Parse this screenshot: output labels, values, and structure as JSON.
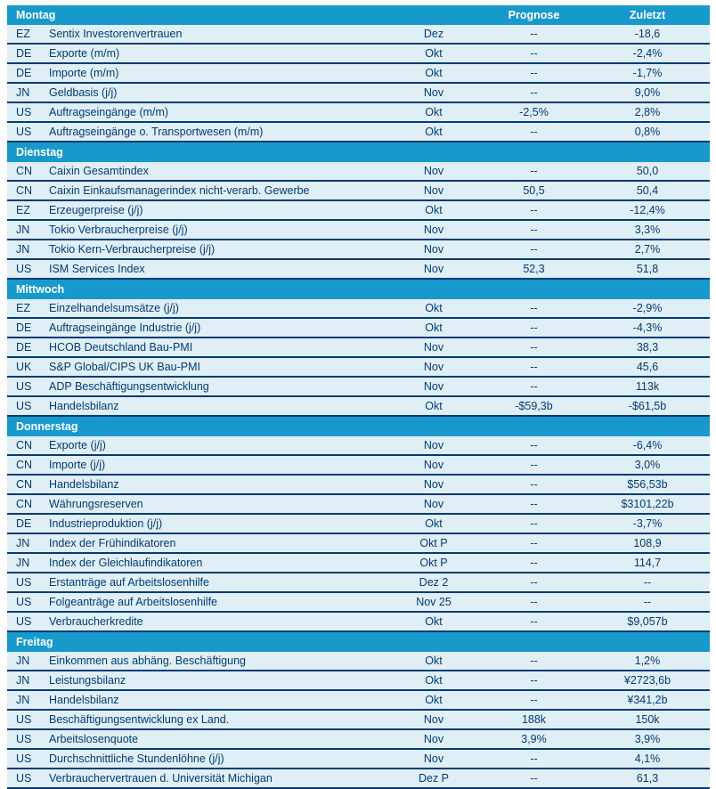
{
  "table": {
    "columns": {
      "prognose": "Prognose",
      "zuletzt": "Zuletzt"
    },
    "colors": {
      "header_bar": "#1899cb",
      "row_background": "#e0eef5",
      "navy": "#003c73"
    },
    "sections": [
      {
        "label": "Montag",
        "show_column_headers": true,
        "rows": [
          {
            "code": "EZ",
            "name": "Sentix Investorenvertrauen",
            "period": "Dez",
            "prognose": "--",
            "zuletzt": "-18,6"
          },
          {
            "code": "DE",
            "name": "Exporte (m/m)",
            "period": "Okt",
            "prognose": "--",
            "zuletzt": "-2,4%"
          },
          {
            "code": "DE",
            "name": "Importe (m/m)",
            "period": "Okt",
            "prognose": "--",
            "zuletzt": "-1,7%"
          },
          {
            "code": "JN",
            "name": "Geldbasis (j/j)",
            "period": "Nov",
            "prognose": "--",
            "zuletzt": "9,0%"
          },
          {
            "code": "US",
            "name": "Auftragseingänge (m/m)",
            "period": "Okt",
            "prognose": "-2,5%",
            "zuletzt": "2,8%"
          },
          {
            "code": "US",
            "name": "Auftragseingänge o. Transportwesen (m/m)",
            "period": "Okt",
            "prognose": "--",
            "zuletzt": "0,8%"
          }
        ]
      },
      {
        "label": "Dienstag",
        "show_column_headers": false,
        "rows": [
          {
            "code": "CN",
            "name": "Caixin Gesamtindex",
            "period": "Nov",
            "prognose": "--",
            "zuletzt": "50,0"
          },
          {
            "code": "CN",
            "name": "Caixin Einkaufsmanagerindex nicht-verarb. Gewerbe",
            "period": "Nov",
            "prognose": "50,5",
            "zuletzt": "50,4"
          },
          {
            "code": "EZ",
            "name": "Erzeugerpreise (j/j)",
            "period": "Okt",
            "prognose": "--",
            "zuletzt": "-12,4%"
          },
          {
            "code": "JN",
            "name": "Tokio Verbraucherpreise (j/j)",
            "period": "Nov",
            "prognose": "--",
            "zuletzt": "3,3%"
          },
          {
            "code": "JN",
            "name": "Tokio Kern-Verbraucherpreise (j/j)",
            "period": "Nov",
            "prognose": "--",
            "zuletzt": "2,7%"
          },
          {
            "code": "US",
            "name": "ISM Services Index",
            "period": "Nov",
            "prognose": "52,3",
            "zuletzt": "51,8"
          }
        ]
      },
      {
        "label": "Mittwoch",
        "show_column_headers": false,
        "rows": [
          {
            "code": "EZ",
            "name": "Einzelhandelsumsätze (j/j)",
            "period": "Okt",
            "prognose": "--",
            "zuletzt": "-2,9%"
          },
          {
            "code": "DE",
            "name": "Auftragseingänge Industrie (j/j)",
            "period": "Okt",
            "prognose": "--",
            "zuletzt": "-4,3%"
          },
          {
            "code": "DE",
            "name": "HCOB Deutschland Bau-PMI",
            "period": "Nov",
            "prognose": "--",
            "zuletzt": "38,3"
          },
          {
            "code": "UK",
            "name": "S&P Global/CIPS UK Bau-PMI",
            "period": "Nov",
            "prognose": "--",
            "zuletzt": "45,6"
          },
          {
            "code": "US",
            "name": "ADP Beschäftigungsentwicklung",
            "period": "Nov",
            "prognose": "--",
            "zuletzt": "113k"
          },
          {
            "code": "US",
            "name": "Handelsbilanz",
            "period": "Okt",
            "prognose": "-$59,3b",
            "zuletzt": "-$61,5b"
          }
        ]
      },
      {
        "label": "Donnerstag",
        "show_column_headers": false,
        "rows": [
          {
            "code": "CN",
            "name": "Exporte (j/j)",
            "period": "Nov",
            "prognose": "--",
            "zuletzt": "-6,4%"
          },
          {
            "code": "CN",
            "name": "Importe (j/j)",
            "period": "Nov",
            "prognose": "--",
            "zuletzt": "3,0%"
          },
          {
            "code": "CN",
            "name": "Handelsbilanz",
            "period": "Nov",
            "prognose": "--",
            "zuletzt": "$56,53b"
          },
          {
            "code": "CN",
            "name": "Währungsreserven",
            "period": "Nov",
            "prognose": "--",
            "zuletzt": "$3101,22b"
          },
          {
            "code": "DE",
            "name": "Industrieproduktion (j/j)",
            "period": "Okt",
            "prognose": "--",
            "zuletzt": "-3,7%"
          },
          {
            "code": "JN",
            "name": "Index der Frühindikatoren",
            "period": "Okt P",
            "prognose": "--",
            "zuletzt": "108,9"
          },
          {
            "code": "JN",
            "name": "Index der Gleichlaufindikatoren",
            "period": "Okt P",
            "prognose": "--",
            "zuletzt": "114,7"
          },
          {
            "code": "US",
            "name": "Erstanträge auf Arbeitslosenhilfe",
            "period": "Dez 2",
            "prognose": "--",
            "zuletzt": "--"
          },
          {
            "code": "US",
            "name": "Folgeanträge auf Arbeitslosenhilfe",
            "period": "Nov 25",
            "prognose": "--",
            "zuletzt": "--"
          },
          {
            "code": "US",
            "name": "Verbraucherkredite",
            "period": "Okt",
            "prognose": "--",
            "zuletzt": "$9,057b"
          }
        ]
      },
      {
        "label": "Freitag",
        "show_column_headers": false,
        "rows": [
          {
            "code": "JN",
            "name": "Einkommen aus abhäng. Beschäftigung",
            "period": "Okt",
            "prognose": "--",
            "zuletzt": "1,2%"
          },
          {
            "code": "JN",
            "name": "Leistungsbilanz",
            "period": "Okt",
            "prognose": "--",
            "zuletzt": "¥2723,6b"
          },
          {
            "code": "JN",
            "name": "Handelsbilanz",
            "period": "Okt",
            "prognose": "--",
            "zuletzt": "¥341,2b"
          },
          {
            "code": "US",
            "name": "Beschäftigungsentwicklung ex Land.",
            "period": "Nov",
            "prognose": "188k",
            "zuletzt": "150k"
          },
          {
            "code": "US",
            "name": "Arbeitslosenquote",
            "period": "Nov",
            "prognose": "3,9%",
            "zuletzt": "3,9%"
          },
          {
            "code": "US",
            "name": "Durchschnittliche Stundenlöhne (j/j)",
            "period": "Nov",
            "prognose": "--",
            "zuletzt": "4,1%"
          },
          {
            "code": "US",
            "name": "Verbrauchervertrauen d. Universität Michigan",
            "period": "Dez P",
            "prognose": "--",
            "zuletzt": "61,3"
          }
        ]
      }
    ]
  }
}
